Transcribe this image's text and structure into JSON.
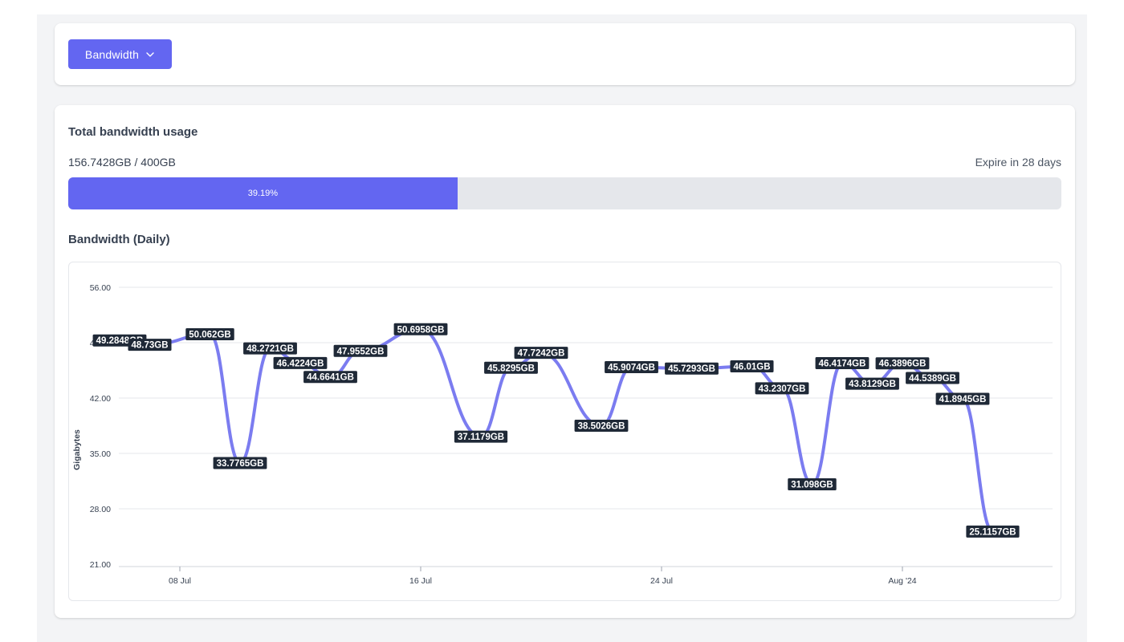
{
  "toolbar": {
    "dropdown_label": "Bandwidth"
  },
  "usage": {
    "title": "Total bandwidth usage",
    "used_text": "156.7428GB / 400GB",
    "expire_text": "Expire in 28 days",
    "progress_label": "39.19%",
    "progress_fraction": 0.3919
  },
  "chart_section": {
    "title": "Bandwidth (Daily)"
  },
  "colors": {
    "accent": "#6366f1",
    "line": "#7b7cf0",
    "label_bg": "#1f2937",
    "track": "#e5e7eb"
  },
  "chart_data": {
    "type": "line",
    "ylabel": "Gigabytes",
    "ylim": [
      21,
      56
    ],
    "yticks": [
      "56.00",
      "49.00",
      "42.00",
      "35.00",
      "28.00",
      "21.00"
    ],
    "xticks": [
      {
        "label": "08 Jul",
        "date": "2024-07-08"
      },
      {
        "label": "16 Jul",
        "date": "2024-07-16"
      },
      {
        "label": "24 Jul",
        "date": "2024-07-24"
      },
      {
        "label": "Aug '24",
        "date": "2024-08-01"
      }
    ],
    "grid": true,
    "series": [
      {
        "points": [
          {
            "date": "2024-07-06",
            "value": 49.2848,
            "label": "49.2848GB"
          },
          {
            "date": "2024-07-07",
            "value": 48.73,
            "label": "48.73GB"
          },
          {
            "date": "2024-07-09",
            "value": 50.062,
            "label": "50.062GB"
          },
          {
            "date": "2024-07-10",
            "value": 33.7765,
            "label": "33.7765GB"
          },
          {
            "date": "2024-07-11",
            "value": 48.2721,
            "label": "48.2721GB"
          },
          {
            "date": "2024-07-12",
            "value": 46.4224,
            "label": "46.4224GB"
          },
          {
            "date": "2024-07-13",
            "value": 44.6641,
            "label": "44.6641GB"
          },
          {
            "date": "2024-07-14",
            "value": 47.9552,
            "label": "47.9552GB"
          },
          {
            "date": "2024-07-16",
            "value": 50.6958,
            "label": "50.6958GB"
          },
          {
            "date": "2024-07-18",
            "value": 37.1179,
            "label": "37.1179GB"
          },
          {
            "date": "2024-07-19",
            "value": 45.8295,
            "label": "45.8295GB"
          },
          {
            "date": "2024-07-20",
            "value": 47.7242,
            "label": "47.7242GB"
          },
          {
            "date": "2024-07-22",
            "value": 38.5026,
            "label": "38.5026GB"
          },
          {
            "date": "2024-07-23",
            "value": 45.9074,
            "label": "45.9074GB"
          },
          {
            "date": "2024-07-25",
            "value": 45.7293,
            "label": "45.7293GB"
          },
          {
            "date": "2024-07-27",
            "value": 46.01,
            "label": "46.01GB"
          },
          {
            "date": "2024-07-28",
            "value": 43.2307,
            "label": "43.2307GB"
          },
          {
            "date": "2024-07-29",
            "value": 31.098,
            "label": "31.098GB"
          },
          {
            "date": "2024-07-30",
            "value": 46.4174,
            "label": "46.4174GB"
          },
          {
            "date": "2024-07-31",
            "value": 43.8129,
            "label": "43.8129GB"
          },
          {
            "date": "2024-08-01",
            "value": 46.3896,
            "label": "46.3896GB"
          },
          {
            "date": "2024-08-02",
            "value": 44.5389,
            "label": "44.5389GB"
          },
          {
            "date": "2024-08-03",
            "value": 41.8945,
            "label": "41.8945GB"
          },
          {
            "date": "2024-08-04",
            "value": 25.1157,
            "label": "25.1157GB"
          }
        ]
      }
    ]
  }
}
